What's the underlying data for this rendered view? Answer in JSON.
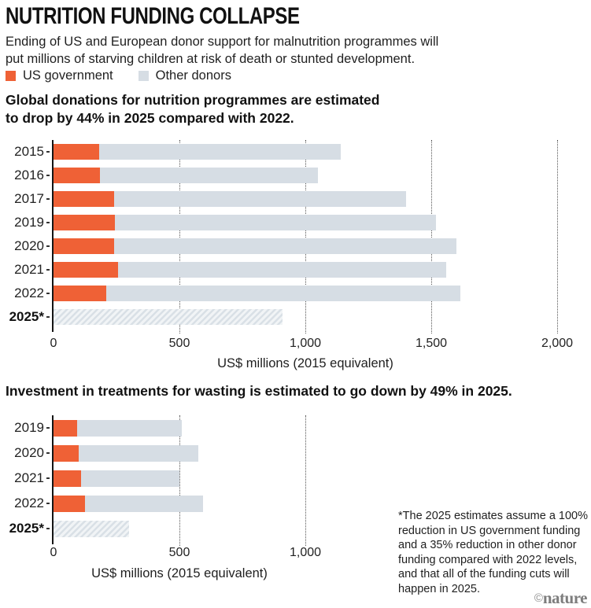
{
  "title": "NUTRITION FUNDING COLLAPSE",
  "subtitle": "Ending of US and European donor support for malnutrition programmes will put millions of starving children at risk of death or stunted development.",
  "subtitle_lines": [
    "Ending of US and European donor support for malnutrition programmes will",
    "put millions of starving children at risk of death or stunted development."
  ],
  "legend": [
    {
      "label": "US government",
      "color": "#ef6136"
    },
    {
      "label": "Other donors",
      "color": "#d6dde4"
    }
  ],
  "colors": {
    "us_government": "#ef6136",
    "other_donors": "#d6dde4",
    "axis": "#151515",
    "credit_gray": "#7d7d7d"
  },
  "chart_data": [
    {
      "type": "bar",
      "orientation": "horizontal",
      "stacked": true,
      "title": "Global donations for nutrition programmes are estimated to drop by 44% in 2025 compared with 2022.",
      "title_lines": [
        "Global donations for nutrition programmes are estimated",
        "to drop by 44% in 2025 compared with 2022."
      ],
      "categories": [
        "2015",
        "2016",
        "2017",
        "2019",
        "2020",
        "2021",
        "2022",
        "2025*"
      ],
      "series": [
        {
          "name": "US government",
          "values": [
            180,
            185,
            240,
            245,
            240,
            255,
            210,
            0
          ]
        },
        {
          "name": "Other donors",
          "values": [
            960,
            865,
            1160,
            1275,
            1360,
            1305,
            1405,
            910
          ]
        }
      ],
      "totals": [
        1140,
        1050,
        1400,
        1520,
        1600,
        1560,
        1615,
        910
      ],
      "hatched_categories": [
        "2025*"
      ],
      "xlabel": "US$ millions (2015 equivalent)",
      "xticks": [
        0,
        500,
        1000,
        1500,
        2000
      ],
      "xtick_labels": [
        "0",
        "500",
        "1,000",
        "1,500",
        "2,000"
      ],
      "xlim": [
        0,
        2100
      ],
      "grid": true,
      "legend_position": "top"
    },
    {
      "type": "bar",
      "orientation": "horizontal",
      "stacked": true,
      "title": "Investment in treatments for wasting is estimated to go down by 49% in 2025.",
      "title_lines": [
        "Investment in treatments for wasting is estimated to go down by 49% in 2025."
      ],
      "categories": [
        "2019",
        "2020",
        "2021",
        "2022",
        "2025*"
      ],
      "series": [
        {
          "name": "US government",
          "values": [
            95,
            100,
            110,
            125,
            0
          ]
        },
        {
          "name": "Other donors",
          "values": [
            415,
            475,
            390,
            470,
            300
          ]
        }
      ],
      "totals": [
        510,
        575,
        500,
        595,
        300
      ],
      "hatched_categories": [
        "2025*"
      ],
      "xlabel": "US$ millions (2015 equivalent)",
      "xticks": [
        0,
        500,
        1000
      ],
      "xtick_labels": [
        "0",
        "500",
        "1,000"
      ],
      "xlim": [
        0,
        2100
      ],
      "grid": true,
      "legend_position": "top"
    }
  ],
  "footnote": "*The 2025 estimates assume a 100% reduction in US government funding and a 35% reduction in other donor funding compared with 2022 levels, and that all of the funding cuts will happen in 2025.",
  "footnote_lines": [
    "*The 2025 estimates assume a 100%",
    "reduction in US government funding",
    "and a 35% reduction in other donor",
    "funding compared with 2022 levels,",
    "and that all of the funding cuts will",
    "happen in 2025."
  ],
  "credit": {
    "symbol": "©",
    "name": "nature"
  }
}
